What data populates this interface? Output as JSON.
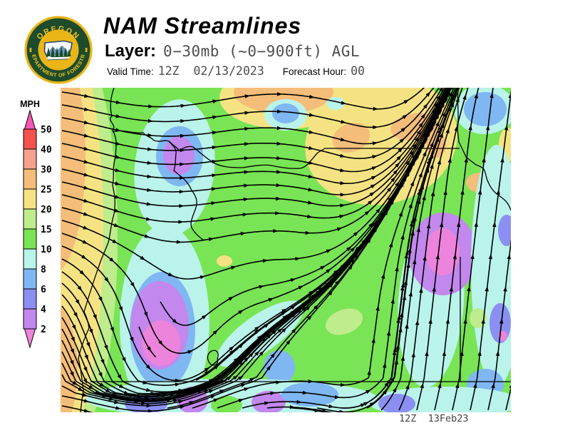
{
  "header": {
    "title": "NAM Streamlines",
    "layer_label": "Layer:",
    "layer_value": "0−30mb (~0−900ft) AGL",
    "valid_time_label": "Valid Time:",
    "valid_time_value": "12Z  02/13/2023",
    "forecast_hour_label": "Forecast Hour:",
    "forecast_hour_value": "00"
  },
  "logo": {
    "arc_top": "OREGON",
    "arc_bottom": "DEPARTMENT OF FORESTRY",
    "colors": {
      "gold": "#E9B517",
      "dark_green": "#1E4B2C",
      "text_gold": "#F2C41C"
    }
  },
  "legend": {
    "units_label": "MPH",
    "tick_labels": [
      "50",
      "40",
      "30",
      "25",
      "20",
      "15",
      "10",
      "8",
      "6",
      "4",
      "2"
    ],
    "segment_colors": [
      "#F4524F",
      "#F7A08F",
      "#F4BE7A",
      "#F5E383",
      "#BFEC8C",
      "#79E455",
      "#B9F3EA",
      "#7FB7F2",
      "#8C8FF2",
      "#C288EE"
    ],
    "above_max_color": "#F558B2",
    "below_min_color": "#EC84DC"
  },
  "map": {
    "timestamp": "12Z  13Feb23"
  }
}
